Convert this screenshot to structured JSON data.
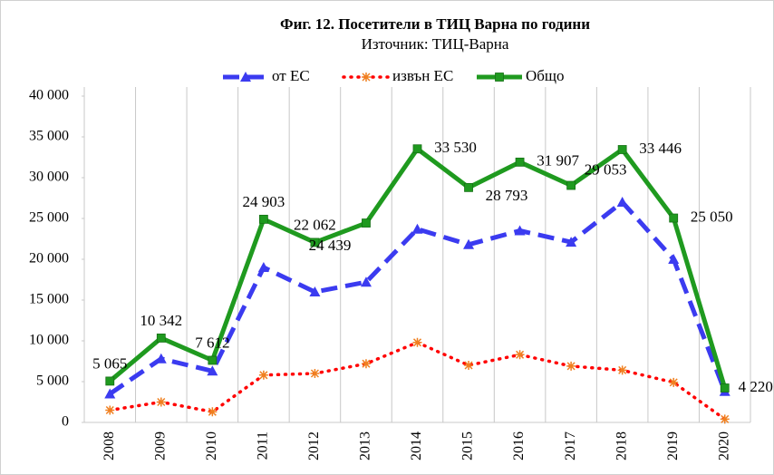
{
  "chart_data": {
    "type": "line",
    "title": "Фиг. 12. Посетители в ТИЦ Варна по години",
    "subtitle": "Източник: ТИЦ-Варна",
    "categories": [
      "2008",
      "2009",
      "2010",
      "2011",
      "2012",
      "2013",
      "2014",
      "2015",
      "2016",
      "2017",
      "2018",
      "2019",
      "2020"
    ],
    "series": [
      {
        "name": "от ЕС",
        "color": "#3b3bf0",
        "values": [
          3500,
          7800,
          6300,
          19000,
          16000,
          17200,
          23700,
          21800,
          23500,
          22100,
          27000,
          20000,
          3800
        ]
      },
      {
        "name": "извън ЕС",
        "color": "#ff0000",
        "values": [
          1500,
          2500,
          1300,
          5800,
          6000,
          7200,
          9800,
          7000,
          8300,
          6900,
          6400,
          4900,
          400
        ]
      },
      {
        "name": "Общо",
        "color": "#1f9a1f",
        "values": [
          5065,
          10342,
          7612,
          24903,
          22062,
          24439,
          33530,
          28793,
          31907,
          29053,
          33446,
          25050,
          4220
        ],
        "value_labels": [
          "5 065",
          "10 342",
          "7 612",
          "24 903",
          "22 062",
          "24 439",
          "33 530",
          "28 793",
          "31 907",
          "29 053",
          "33 446",
          "25 050",
          "4 220"
        ]
      }
    ],
    "ylim": [
      0,
      40000
    ],
    "yticks": [
      0,
      {
        "value": 5000,
        "label": "5 000"
      },
      {
        "value": 10000,
        "label": "10 000"
      },
      {
        "value": 15000,
        "label": "15 000"
      },
      {
        "value": 20000,
        "label": "20 000"
      },
      {
        "value": 25000,
        "label": "25 000"
      },
      {
        "value": 30000,
        "label": "30 000"
      },
      {
        "value": 35000,
        "label": "35 000"
      },
      {
        "value": 40000,
        "label": "40 000"
      }
    ],
    "grid": true,
    "legend": "top"
  }
}
